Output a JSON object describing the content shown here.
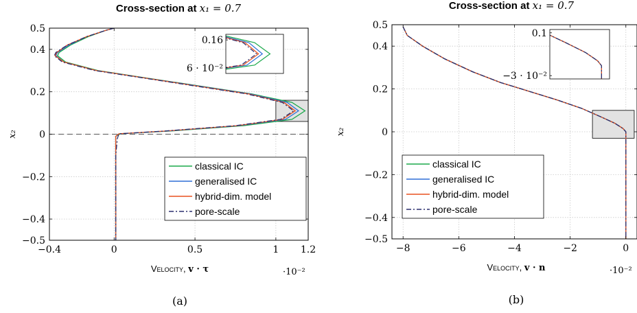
{
  "chart_data": [
    {
      "type": "line",
      "title": "Cross-section at x1 = 0.7",
      "title_text": "Cross-section at ",
      "title_math": "x₁ = 0.7",
      "xlabel_prefix": "Velocity, ",
      "xlabel_math": "v · τ",
      "x_multiplier": "·10⁻²",
      "ylabel": "x₂",
      "caption": "(a)",
      "xlim": [
        -0.4,
        1.2
      ],
      "ylim": [
        -0.5,
        0.5
      ],
      "x_ticks": [
        -0.4,
        0,
        0.5,
        1,
        1.2
      ],
      "x_tick_labels": [
        "−0.4",
        "0",
        "0.5",
        "1",
        "1.2"
      ],
      "y_ticks": [
        -0.5,
        -0.4,
        -0.2,
        0,
        0.2,
        0.4,
        0.5
      ],
      "y_tick_labels": [
        "−0.5",
        "−0.4",
        "−0.2",
        "0",
        "0.2",
        "0.4",
        "0.5"
      ],
      "grid": true,
      "legend_position": "bottom-right",
      "reference_line_y": 0,
      "series": [
        {
          "name": "classical IC",
          "color": "#1aa84a",
          "style": "solid",
          "points": [
            [
              0,
              0.5
            ],
            [
              -0.05,
              0.49
            ],
            [
              -0.16,
              0.46
            ],
            [
              -0.27,
              0.42
            ],
            [
              -0.34,
              0.385
            ],
            [
              -0.35,
              0.37
            ],
            [
              -0.3,
              0.34
            ],
            [
              -0.1,
              0.3
            ],
            [
              0.2,
              0.265
            ],
            [
              0.55,
              0.225
            ],
            [
              0.85,
              0.19
            ],
            [
              1.1,
              0.15
            ],
            [
              1.18,
              0.11
            ],
            [
              1.1,
              0.07
            ],
            [
              0.8,
              0.04
            ],
            [
              0.35,
              0.015
            ],
            [
              0.04,
              0.002
            ],
            [
              0.01,
              -0.01
            ],
            [
              0.01,
              -0.5
            ]
          ]
        },
        {
          "name": "generalised IC",
          "color": "#2f6fd6",
          "style": "solid",
          "points": [
            [
              0,
              0.5
            ],
            [
              -0.05,
              0.49
            ],
            [
              -0.17,
              0.46
            ],
            [
              -0.28,
              0.42
            ],
            [
              -0.35,
              0.385
            ],
            [
              -0.36,
              0.37
            ],
            [
              -0.31,
              0.34
            ],
            [
              -0.11,
              0.3
            ],
            [
              0.19,
              0.265
            ],
            [
              0.54,
              0.225
            ],
            [
              0.84,
              0.19
            ],
            [
              1.07,
              0.15
            ],
            [
              1.14,
              0.11
            ],
            [
              1.06,
              0.07
            ],
            [
              0.77,
              0.04
            ],
            [
              0.33,
              0.015
            ],
            [
              0.03,
              0.002
            ],
            [
              0.01,
              -0.01
            ],
            [
              0.01,
              -0.5
            ]
          ]
        },
        {
          "name": "hybrid-dim. model",
          "color": "#e8501e",
          "style": "solid",
          "points": [
            [
              0,
              0.5
            ],
            [
              -0.05,
              0.49
            ],
            [
              -0.17,
              0.46
            ],
            [
              -0.29,
              0.42
            ],
            [
              -0.355,
              0.385
            ],
            [
              -0.365,
              0.37
            ],
            [
              -0.31,
              0.34
            ],
            [
              -0.11,
              0.3
            ],
            [
              0.19,
              0.265
            ],
            [
              0.53,
              0.225
            ],
            [
              0.83,
              0.19
            ],
            [
              1.05,
              0.15
            ],
            [
              1.12,
              0.11
            ],
            [
              1.04,
              0.07
            ],
            [
              0.76,
              0.04
            ],
            [
              0.32,
              0.015
            ],
            [
              0.03,
              0.002
            ],
            [
              0.01,
              -0.01
            ],
            [
              0.01,
              -0.5
            ]
          ]
        },
        {
          "name": "pore-scale",
          "color": "#2a2f6e",
          "style": "dashdot",
          "points": [
            [
              0,
              0.5
            ],
            [
              -0.05,
              0.49
            ],
            [
              -0.17,
              0.46
            ],
            [
              -0.29,
              0.42
            ],
            [
              -0.36,
              0.385
            ],
            [
              -0.37,
              0.37
            ],
            [
              -0.32,
              0.34
            ],
            [
              -0.12,
              0.3
            ],
            [
              0.18,
              0.265
            ],
            [
              0.52,
              0.225
            ],
            [
              0.82,
              0.19
            ],
            [
              1.04,
              0.15
            ],
            [
              1.11,
              0.11
            ],
            [
              1.03,
              0.07
            ],
            [
              0.75,
              0.04
            ],
            [
              0.31,
              0.015
            ],
            [
              0.03,
              0.002
            ],
            [
              0.02,
              -0.02
            ],
            [
              0.01,
              -0.1
            ],
            [
              0.01,
              -0.5
            ]
          ]
        }
      ],
      "zoom_box": {
        "xmin": 1.0,
        "xmax": 1.2,
        "ymin": 0.06,
        "ymax": 0.16
      },
      "inset": {
        "xlim": [
          0.95,
          1.25
        ],
        "ylim": [
          0.04,
          0.18
        ],
        "y_tick_values": [
          0.16,
          0.06
        ],
        "y_tick_labels": [
          "0.16",
          "6 · 10⁻²"
        ]
      }
    },
    {
      "type": "line",
      "title": "Cross-section at x1 = 0.7",
      "title_text": "Cross-section at ",
      "title_math": "x₁ = 0.7",
      "xlabel_prefix": "Velocity, ",
      "xlabel_math": "v · n",
      "x_multiplier": "·10⁻²",
      "ylabel": "x₂",
      "caption": "(b)",
      "xlim": [
        -8.4,
        0.4
      ],
      "ylim": [
        -0.5,
        0.5
      ],
      "x_ticks": [
        -8,
        -6,
        -4,
        -2,
        0
      ],
      "x_tick_labels": [
        "−8",
        "−6",
        "−4",
        "−2",
        "0"
      ],
      "y_ticks": [
        -0.5,
        -0.4,
        -0.2,
        0,
        0.2,
        0.4,
        0.5
      ],
      "y_tick_labels": [
        "−0.5",
        "−0.4",
        "−0.2",
        "0",
        "0.2",
        "0.4",
        "0.5"
      ],
      "grid": true,
      "legend_position": "bottom-left",
      "series": [
        {
          "name": "classical IC",
          "color": "#1aa84a",
          "style": "solid",
          "points": [
            [
              -8.0,
              0.49
            ],
            [
              -7.85,
              0.45
            ],
            [
              -7.3,
              0.4
            ],
            [
              -6.5,
              0.34
            ],
            [
              -5.5,
              0.28
            ],
            [
              -4.5,
              0.23
            ],
            [
              -3.5,
              0.19
            ],
            [
              -2.5,
              0.15
            ],
            [
              -1.6,
              0.11
            ],
            [
              -0.9,
              0.07
            ],
            [
              -0.4,
              0.04
            ],
            [
              -0.1,
              0.015
            ],
            [
              0,
              0
            ],
            [
              0,
              -0.5
            ]
          ]
        },
        {
          "name": "generalised IC",
          "color": "#2f6fd6",
          "style": "solid",
          "points": [
            [
              -8.0,
              0.49
            ],
            [
              -7.85,
              0.45
            ],
            [
              -7.3,
              0.4
            ],
            [
              -6.5,
              0.34
            ],
            [
              -5.5,
              0.28
            ],
            [
              -4.5,
              0.23
            ],
            [
              -3.5,
              0.19
            ],
            [
              -2.5,
              0.15
            ],
            [
              -1.6,
              0.11
            ],
            [
              -0.9,
              0.07
            ],
            [
              -0.4,
              0.04
            ],
            [
              -0.1,
              0.015
            ],
            [
              0,
              0
            ],
            [
              0,
              -0.5
            ]
          ]
        },
        {
          "name": "hybrid-dim. model",
          "color": "#e8501e",
          "style": "solid",
          "points": [
            [
              -8.0,
              0.49
            ],
            [
              -7.85,
              0.45
            ],
            [
              -7.3,
              0.4
            ],
            [
              -6.5,
              0.34
            ],
            [
              -5.5,
              0.28
            ],
            [
              -4.5,
              0.23
            ],
            [
              -3.5,
              0.19
            ],
            [
              -2.5,
              0.15
            ],
            [
              -1.6,
              0.11
            ],
            [
              -0.9,
              0.07
            ],
            [
              -0.4,
              0.04
            ],
            [
              -0.1,
              0.015
            ],
            [
              0,
              0
            ],
            [
              0,
              -0.5
            ]
          ]
        },
        {
          "name": "pore-scale",
          "color": "#2a2f6e",
          "style": "dashdot",
          "points": [
            [
              -8.0,
              0.49
            ],
            [
              -7.85,
              0.45
            ],
            [
              -7.3,
              0.4
            ],
            [
              -6.5,
              0.34
            ],
            [
              -5.5,
              0.28
            ],
            [
              -4.5,
              0.23
            ],
            [
              -3.5,
              0.19
            ],
            [
              -2.5,
              0.15
            ],
            [
              -1.6,
              0.11
            ],
            [
              -0.9,
              0.07
            ],
            [
              -0.4,
              0.04
            ],
            [
              -0.1,
              0.015
            ],
            [
              0,
              0
            ],
            [
              0,
              -0.5
            ]
          ]
        }
      ],
      "zoom_box": {
        "xmin": -1.2,
        "xmax": 0.3,
        "ymin": -0.03,
        "ymax": 0.1
      },
      "inset": {
        "xlim": [
          -1.3,
          0.2
        ],
        "ylim": [
          -0.04,
          0.11
        ],
        "y_tick_values": [
          0.1,
          -0.03
        ],
        "y_tick_labels": [
          "0.1",
          "−3 · 10⁻²"
        ]
      }
    }
  ]
}
